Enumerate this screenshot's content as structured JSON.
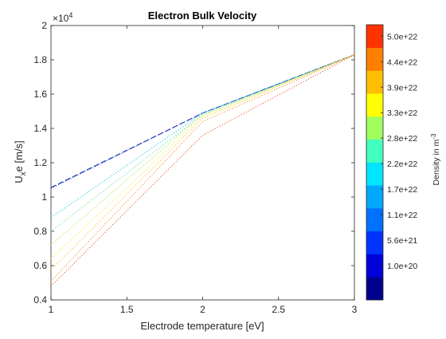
{
  "chart_data": {
    "type": "line",
    "title": "Electron Bulk Velocity",
    "xlabel": "Electrode temperature [eV]",
    "ylabel_main": "U",
    "ylabel_sub": "x",
    "ylabel_rest": "e [m/s]",
    "y_exponent_prefix": "×10",
    "y_exponent_power": "4",
    "xlim": [
      1,
      3
    ],
    "ylim": [
      0.4,
      2.0
    ],
    "x_ticks": [
      "1",
      "1.5",
      "2",
      "2.5",
      "3"
    ],
    "x_tick_values": [
      1,
      1.5,
      2,
      2.5,
      3
    ],
    "y_ticks": [
      "0.4",
      "0.6",
      "0.8",
      "1",
      "1.2",
      "1.4",
      "1.6",
      "1.8",
      "2"
    ],
    "y_tick_values": [
      0.4,
      0.6,
      0.8,
      1.0,
      1.2,
      1.4,
      1.6,
      1.8,
      2.0
    ],
    "grid": false,
    "series": [
      {
        "x": [
          1,
          2,
          3
        ],
        "y": [
          1.055,
          1.49,
          1.83
        ],
        "color": "#1f1fa0",
        "dash": "dashed"
      },
      {
        "x": [
          1,
          2,
          3
        ],
        "y": [
          1.05,
          1.49,
          1.83
        ],
        "color": "#1a66e6",
        "dash": "dotted"
      },
      {
        "x": [
          1,
          2,
          3
        ],
        "y": [
          0.88,
          1.49,
          1.83
        ],
        "color": "#22c9df",
        "dash": "dotted"
      },
      {
        "x": [
          1,
          2,
          3
        ],
        "y": [
          0.8,
          1.48,
          1.83
        ],
        "color": "#70e090",
        "dash": "dotted"
      },
      {
        "x": [
          1,
          2,
          3
        ],
        "y": [
          0.72,
          1.48,
          1.83
        ],
        "color": "#b9e64a",
        "dash": "dotted"
      },
      {
        "x": [
          1,
          2,
          3
        ],
        "y": [
          0.64,
          1.47,
          1.83
        ],
        "color": "#f3f03a",
        "dash": "dotted"
      },
      {
        "x": [
          1,
          2,
          3
        ],
        "y": [
          0.575,
          1.46,
          1.83
        ],
        "color": "#f8c63a",
        "dash": "dotted"
      },
      {
        "x": [
          1,
          2,
          3
        ],
        "y": [
          0.51,
          1.44,
          1.83
        ],
        "color": "#f8932e",
        "dash": "dotted"
      },
      {
        "x": [
          1,
          2,
          3
        ],
        "y": [
          0.48,
          1.36,
          1.83
        ],
        "color": "#ee5a2a",
        "dash": "dotted"
      }
    ],
    "colorbar": {
      "label_main": "Density in m",
      "label_power": "-3",
      "colors": [
        "#00008f",
        "#0000d9",
        "#0033ff",
        "#0070ff",
        "#00a8ff",
        "#00e5ff",
        "#40ffbf",
        "#a0ff5f",
        "#ffff00",
        "#ffbf00",
        "#ff7f00",
        "#ff3300"
      ],
      "tick_labels": [
        "1.0e+20",
        "5.6e+21",
        "1.1e+22",
        "1.7e+22",
        "2.2e+22",
        "2.8e+22",
        "3.3e+22",
        "3.9e+22",
        "4.4e+22",
        "5.0e+22"
      ]
    }
  }
}
